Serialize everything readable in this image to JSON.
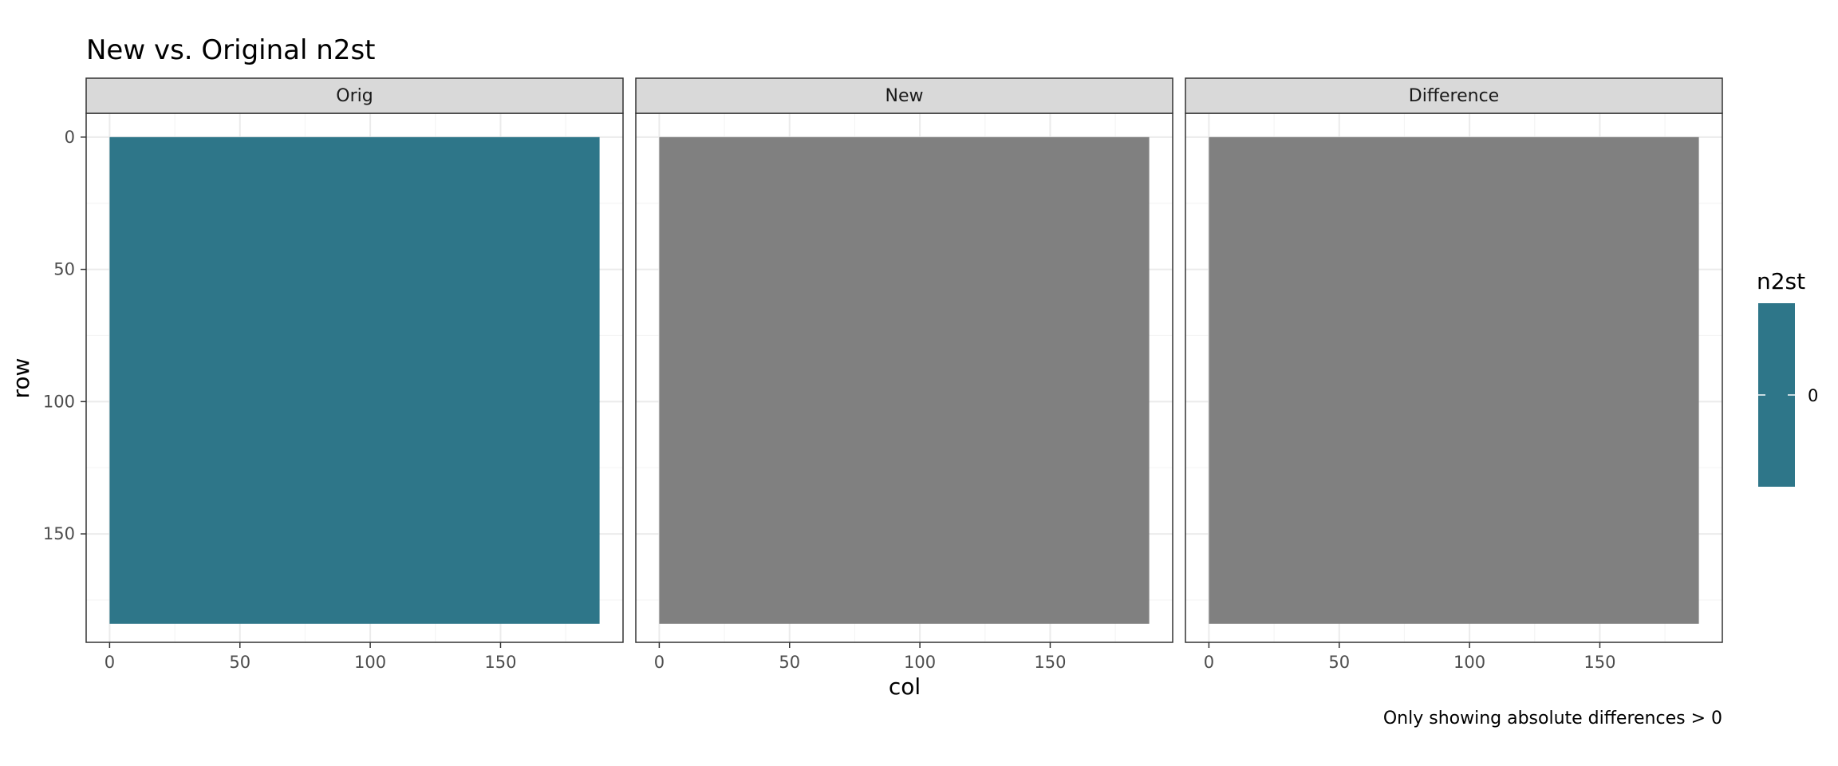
{
  "chart_data": {
    "type": "heatmap",
    "title": "New vs. Original n2st",
    "xlabel": "col",
    "ylabel": "row",
    "caption": "Only showing absolute differences > 0",
    "facets": [
      "Orig",
      "New",
      "Difference"
    ],
    "xlim": [
      -9,
      197
    ],
    "ylim": [
      191,
      -9
    ],
    "x_ticks": [
      0,
      50,
      100,
      150
    ],
    "y_ticks": [
      0,
      50,
      100,
      150
    ],
    "grid": true,
    "legend": {
      "title": "n2st",
      "position": "right",
      "breaks": [
        {
          "label": "0",
          "value": 0
        }
      ],
      "color": "#2e7689"
    },
    "tiles": [
      {
        "facet": "Orig",
        "x_range": [
          0,
          188
        ],
        "y_range": [
          0,
          184
        ],
        "value": 0,
        "color": "#2e7689"
      },
      {
        "facet": "New",
        "x_range": [
          0,
          188
        ],
        "y_range": [
          0,
          184
        ],
        "value": null,
        "color": "#808080"
      },
      {
        "facet": "Difference",
        "x_range": [
          0,
          188
        ],
        "y_range": [
          0,
          184
        ],
        "value": null,
        "color": "#808080"
      }
    ],
    "colors": {
      "fill": "#2e7689",
      "na_fill": "#808080",
      "strip_bg": "#d9d9d9",
      "grid_major": "#ebebeb",
      "grid_minor": "#f5f5f5",
      "panel_border": "#333333"
    }
  }
}
